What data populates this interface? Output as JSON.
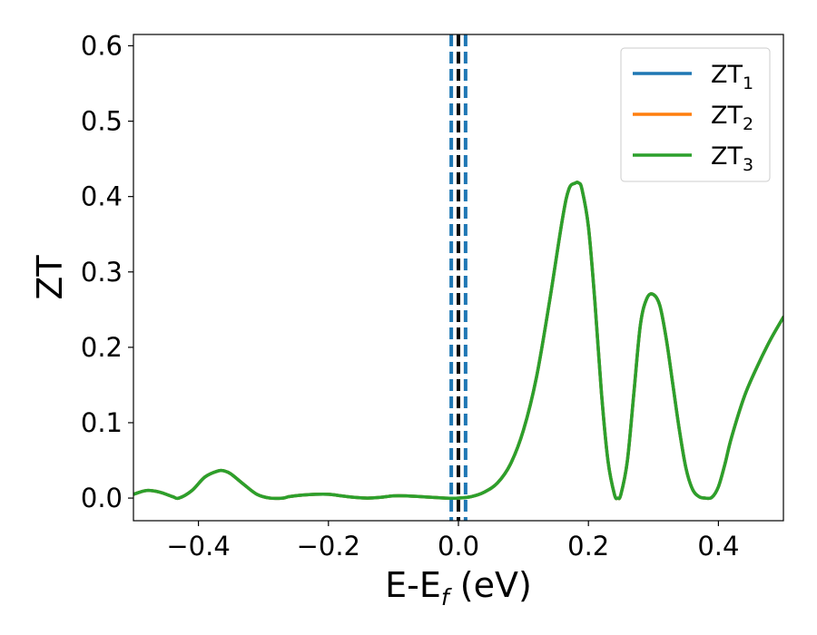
{
  "chart_data": {
    "type": "line",
    "xlabel": "E-E",
    "xlabel_sub": "f",
    "xlabel_unit": " (eV)",
    "ylabel": "ZT",
    "xlim": [
      -0.5,
      0.5
    ],
    "ylim": [
      -0.03,
      0.615
    ],
    "xticks": [
      -0.4,
      -0.2,
      0.0,
      0.2,
      0.4
    ],
    "xtick_labels": [
      "−0.4",
      "−0.2",
      "0.0",
      "0.2",
      "0.4"
    ],
    "yticks": [
      0.0,
      0.1,
      0.2,
      0.3,
      0.4,
      0.5,
      0.6
    ],
    "ytick_labels": [
      "0.0",
      "0.1",
      "0.2",
      "0.3",
      "0.4",
      "0.5",
      "0.6"
    ],
    "grid": false,
    "legend_placement": "top-right",
    "legend": [
      {
        "base": "ZT",
        "sub": "1",
        "color": "#1f77b4"
      },
      {
        "base": "ZT",
        "sub": "2",
        "color": "#ff7f0e"
      },
      {
        "base": "ZT",
        "sub": "3",
        "color": "#2ca02c"
      }
    ],
    "vlines": [
      {
        "x": -0.011,
        "color": "#1f77b4",
        "style": "dashed"
      },
      {
        "x": 0.0,
        "color": "#000000",
        "style": "dashed"
      },
      {
        "x": 0.011,
        "color": "#1f77b4",
        "style": "dashed"
      }
    ],
    "x": [
      -0.5,
      -0.48,
      -0.46,
      -0.44,
      -0.43,
      -0.41,
      -0.39,
      -0.37,
      -0.36,
      -0.35,
      -0.33,
      -0.31,
      -0.29,
      -0.27,
      -0.26,
      -0.24,
      -0.22,
      -0.2,
      -0.18,
      -0.16,
      -0.14,
      -0.12,
      -0.1,
      -0.08,
      -0.06,
      -0.04,
      -0.02,
      0.0,
      0.02,
      0.04,
      0.06,
      0.08,
      0.1,
      0.12,
      0.14,
      0.16,
      0.17,
      0.18,
      0.185,
      0.19,
      0.2,
      0.21,
      0.22,
      0.23,
      0.24,
      0.245,
      0.25,
      0.26,
      0.27,
      0.28,
      0.29,
      0.3,
      0.31,
      0.32,
      0.33,
      0.34,
      0.35,
      0.36,
      0.37,
      0.38,
      0.39,
      0.4,
      0.41,
      0.42,
      0.44,
      0.46,
      0.48,
      0.5
    ],
    "series": [
      {
        "name": "ZT1",
        "color": "#1f77b4",
        "values": [
          0.005,
          0.01,
          0.008,
          0.002,
          0.0,
          0.01,
          0.028,
          0.036,
          0.036,
          0.032,
          0.018,
          0.005,
          0.0,
          0.0,
          0.002,
          0.004,
          0.005,
          0.005,
          0.003,
          0.001,
          0.0,
          0.001,
          0.003,
          0.003,
          0.002,
          0.001,
          0.0,
          0.0,
          0.002,
          0.008,
          0.02,
          0.045,
          0.09,
          0.16,
          0.26,
          0.37,
          0.41,
          0.418,
          0.418,
          0.41,
          0.36,
          0.26,
          0.14,
          0.05,
          0.005,
          0.0,
          0.005,
          0.05,
          0.14,
          0.23,
          0.265,
          0.27,
          0.255,
          0.21,
          0.15,
          0.09,
          0.04,
          0.012,
          0.002,
          0.0,
          0.001,
          0.015,
          0.045,
          0.08,
          0.135,
          0.175,
          0.21,
          0.24
        ]
      },
      {
        "name": "ZT2",
        "color": "#ff7f0e",
        "values": [
          0.005,
          0.01,
          0.008,
          0.002,
          0.0,
          0.01,
          0.028,
          0.036,
          0.036,
          0.032,
          0.018,
          0.005,
          0.0,
          0.0,
          0.002,
          0.004,
          0.005,
          0.005,
          0.003,
          0.001,
          0.0,
          0.001,
          0.003,
          0.003,
          0.002,
          0.001,
          0.0,
          0.0,
          0.002,
          0.008,
          0.02,
          0.045,
          0.09,
          0.16,
          0.26,
          0.37,
          0.41,
          0.418,
          0.418,
          0.41,
          0.36,
          0.26,
          0.14,
          0.05,
          0.005,
          0.0,
          0.005,
          0.05,
          0.14,
          0.23,
          0.265,
          0.27,
          0.255,
          0.21,
          0.15,
          0.09,
          0.04,
          0.012,
          0.002,
          0.0,
          0.001,
          0.015,
          0.045,
          0.08,
          0.135,
          0.175,
          0.21,
          0.24
        ]
      },
      {
        "name": "ZT3",
        "color": "#2ca02c",
        "values": [
          0.005,
          0.01,
          0.008,
          0.002,
          0.0,
          0.01,
          0.028,
          0.036,
          0.036,
          0.032,
          0.018,
          0.005,
          0.0,
          0.0,
          0.002,
          0.004,
          0.005,
          0.005,
          0.003,
          0.001,
          0.0,
          0.001,
          0.003,
          0.003,
          0.002,
          0.001,
          0.0,
          0.0,
          0.002,
          0.008,
          0.02,
          0.045,
          0.09,
          0.16,
          0.26,
          0.37,
          0.41,
          0.418,
          0.418,
          0.41,
          0.36,
          0.26,
          0.14,
          0.05,
          0.005,
          0.0,
          0.005,
          0.05,
          0.14,
          0.23,
          0.265,
          0.27,
          0.255,
          0.21,
          0.15,
          0.09,
          0.04,
          0.012,
          0.002,
          0.0,
          0.001,
          0.015,
          0.045,
          0.08,
          0.135,
          0.175,
          0.21,
          0.24
        ]
      }
    ]
  }
}
